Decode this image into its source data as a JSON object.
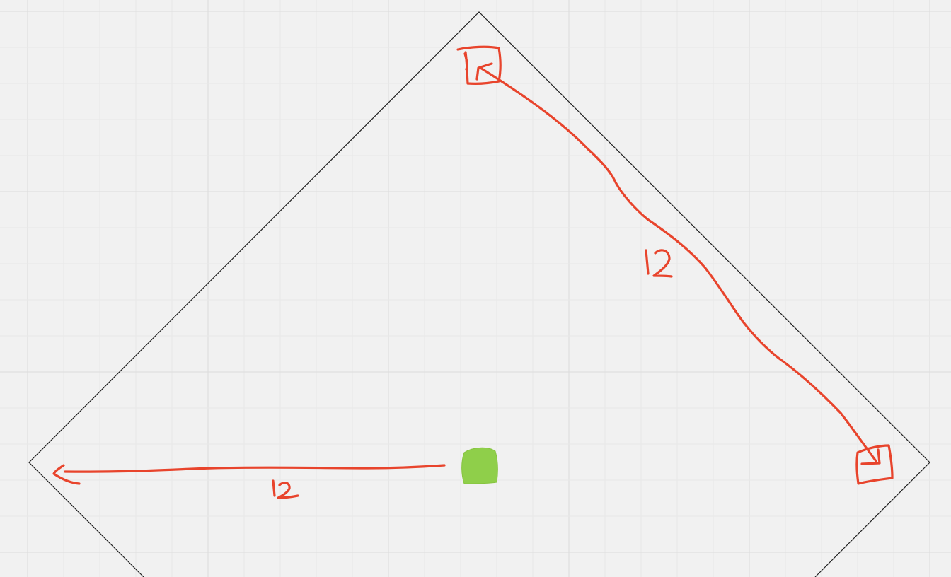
{
  "canvas": {
    "background": "#f1f1f1",
    "grid_minor_color": "#e8e8e8",
    "grid_major_color": "#dcdcdc"
  },
  "diagram": {
    "outline_color": "#222222",
    "annotation_color": "#e8442c",
    "marker_color": "#8fcf4a",
    "labels": {
      "right_edge_distance": "12",
      "bottom_distance": "12"
    },
    "icons": {
      "top_square": "square-arrow-icon",
      "right_square": "square-arrow-icon",
      "start_marker": "green-square-marker-icon"
    }
  }
}
